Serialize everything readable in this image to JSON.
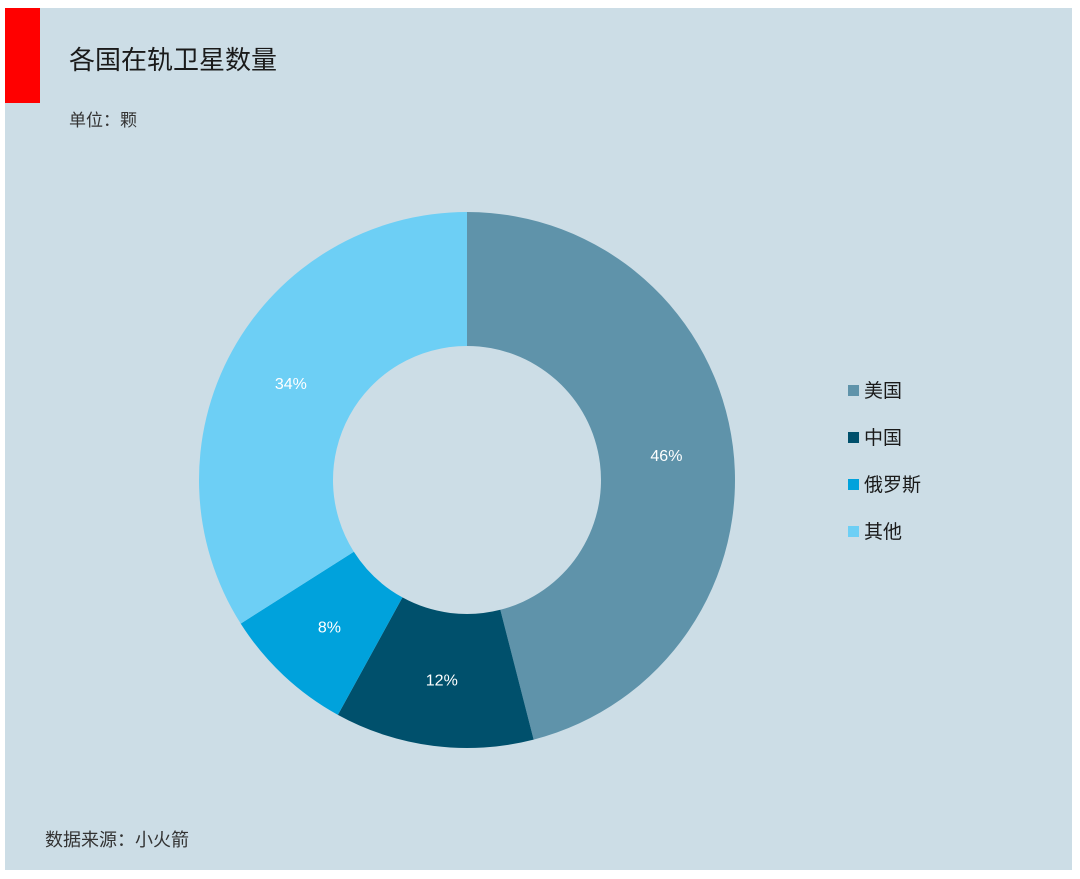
{
  "header": {
    "title": "各国在轨卫星数量",
    "subtitle": "单位：颗",
    "accent_color": "#ff0000"
  },
  "footer": {
    "source": "数据来源：小火箭"
  },
  "chart_data": {
    "type": "pie",
    "donut": true,
    "title": "各国在轨卫星数量",
    "subtitle": "单位：颗",
    "legend_position": "right",
    "categories": [
      "美国",
      "中国",
      "俄罗斯",
      "其他"
    ],
    "values": [
      46,
      12,
      8,
      34
    ],
    "labels": [
      "46%",
      "12%",
      "8%",
      "34%"
    ],
    "colors": [
      "#5f93aa",
      "#00506c",
      "#00a2dc",
      "#6dcff5"
    ],
    "background": "#ccdde6"
  }
}
